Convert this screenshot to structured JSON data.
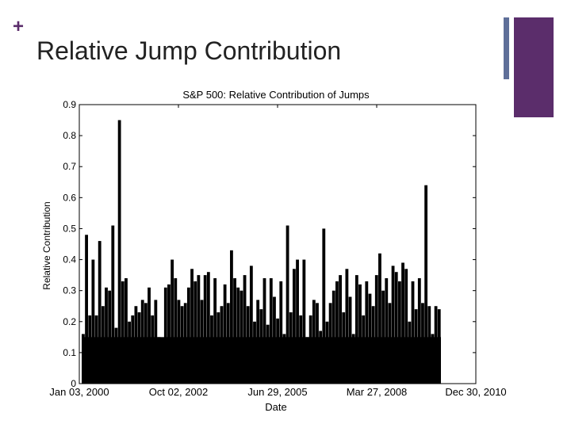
{
  "slide": {
    "title": "Relative Jump Contribution",
    "plus_icon": "plus-icon",
    "accent_color": "#5b2d6b",
    "secondary_color": "#5f6f99"
  },
  "chart_data": {
    "type": "bar",
    "title": "S&P 500: Relative Contribution of Jumps",
    "xlabel": "Date",
    "ylabel": "Relative Contribution",
    "ylim": [
      0,
      0.9
    ],
    "yticks": [
      "0",
      "0.1",
      "0.2",
      "0.3",
      "0.4",
      "0.5",
      "0.6",
      "0.7",
      "0.8",
      "0.9"
    ],
    "xticks": [
      "Jan 03, 2000",
      "Oct 02, 2002",
      "Jun 29, 2005",
      "Mar 27, 2008",
      "Dec 30, 2010"
    ],
    "xlim": [
      "2000-01-03",
      "2010-12-30"
    ],
    "grid": false,
    "bar_color": "#000000",
    "series": [
      {
        "values": [
          0.16,
          0.48,
          0.22,
          0.4,
          0.22,
          0.46,
          0.25,
          0.31,
          0.3,
          0.51,
          0.18,
          0.85,
          0.33,
          0.34,
          0.2,
          0.22,
          0.25,
          0.23,
          0.27,
          0.26,
          0.31,
          0.22,
          0.27,
          0.15,
          0.13,
          0.31,
          0.32,
          0.4,
          0.34,
          0.27,
          0.25,
          0.26,
          0.31,
          0.37,
          0.33,
          0.35,
          0.27,
          0.35,
          0.36,
          0.22,
          0.34,
          0.23,
          0.25,
          0.32,
          0.26,
          0.43,
          0.34,
          0.31,
          0.3,
          0.35,
          0.25,
          0.38,
          0.2,
          0.27,
          0.24,
          0.34,
          0.19,
          0.34,
          0.28,
          0.21,
          0.33,
          0.16,
          0.51,
          0.23,
          0.37,
          0.4,
          0.22,
          0.4,
          0.15,
          0.22,
          0.27,
          0.26,
          0.17,
          0.5,
          0.2,
          0.26,
          0.3,
          0.33,
          0.35,
          0.23,
          0.37,
          0.28,
          0.16,
          0.35,
          0.32,
          0.22,
          0.33,
          0.29,
          0.25,
          0.35,
          0.42,
          0.3,
          0.34,
          0.26,
          0.38,
          0.36,
          0.33,
          0.39,
          0.37,
          0.2,
          0.33,
          0.24,
          0.34,
          0.26,
          0.64,
          0.25,
          0.16,
          0.25,
          0.24
        ]
      }
    ]
  }
}
